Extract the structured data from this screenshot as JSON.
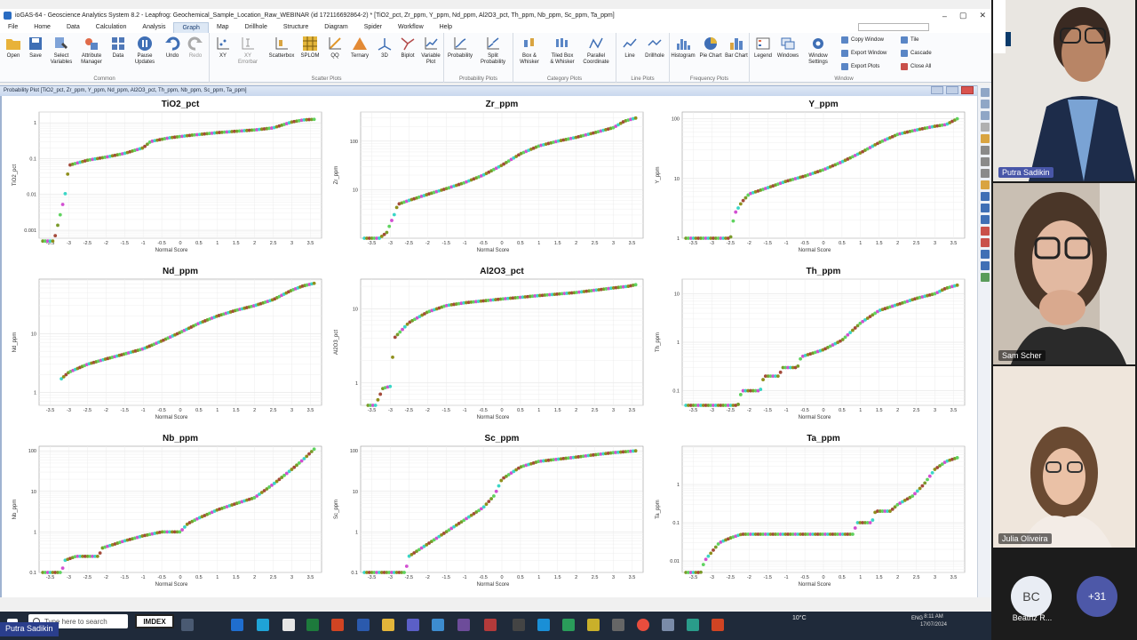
{
  "window": {
    "title": "ioGAS-64 - Geoscience Analytics System 8.2 - Leapfrog: Geochemical_Sample_Location_Raw_WEBINAR (id 172116692864-2) * [TiO2_pct, Zr_ppm, Y_ppm, Nd_ppm, Al2O3_pct, Th_ppm, Nb_ppm, Sc_ppm, Ta_ppm]",
    "controls": [
      "–",
      "▢",
      "✕"
    ]
  },
  "menu": {
    "items": [
      "File",
      "Home",
      "Data",
      "Calculation",
      "Analysis",
      "Graph",
      "Map",
      "Drillhole",
      "Structure",
      "Diagram",
      "Spider",
      "Workflow",
      "Help"
    ],
    "active_index": 5
  },
  "ribbon": {
    "groups": [
      {
        "label": "Common",
        "buttons": [
          "Open",
          "Save",
          "Select Variables",
          "Attribute Manager",
          "Data",
          "Pause Updates",
          "Undo",
          "Redo"
        ]
      },
      {
        "label": "Scatter Plots",
        "buttons": [
          "XY",
          "XY Errorbar",
          "Scatterbox",
          "SPLOM",
          "QQ",
          "Ternary",
          "3D",
          "Biplot",
          "Variable Plot"
        ]
      },
      {
        "label": "Probability Plots",
        "buttons": [
          "Probability",
          "Split Probability"
        ]
      },
      {
        "label": "Category Plots",
        "buttons": [
          "Box & Whisker",
          "Tiled Box & Whisker",
          "Parallel Coordinate"
        ]
      },
      {
        "label": "Line Plots",
        "buttons": [
          "Line",
          "Drillhole"
        ]
      },
      {
        "label": "Frequency Plots",
        "buttons": [
          "Histogram",
          "Pie Chart",
          "Bar Chart"
        ]
      },
      {
        "label": "Window",
        "buttons": [
          "Legend",
          "Windows",
          "Window Settings"
        ]
      }
    ],
    "window_small": [
      "Copy Window",
      "Export Window",
      "Export Plots",
      "Tile",
      "Cascade",
      "Close All"
    ]
  },
  "document": {
    "title": "Probability Plot [TiO2_pct, Zr_ppm, Y_ppm, Nd_ppm, Al2O3_pct, Th_ppm, Nb_ppm, Sc_ppm, Ta_ppm]"
  },
  "chart_data": [
    {
      "type": "scatter",
      "title": "TiO2_pct",
      "xlabel": "Normal Score",
      "ylabel": "TiO2_pct",
      "log_y": true,
      "xlim": [
        -3.8,
        3.8
      ],
      "ylim": [
        0.0006,
        2
      ],
      "yticks": [
        0.001,
        0.01,
        0.1,
        1
      ],
      "ytick_labels": [
        "0.001",
        "0.01",
        "0.1",
        "1"
      ],
      "curve": [
        [
          -3.7,
          0.0005
        ],
        [
          -3.4,
          0.0005
        ],
        [
          -3.1,
          0.01
        ],
        [
          -3.0,
          0.065
        ],
        [
          -2.5,
          0.09
        ],
        [
          -2.0,
          0.11
        ],
        [
          -1.5,
          0.14
        ],
        [
          -1.0,
          0.2
        ],
        [
          -0.8,
          0.3
        ],
        [
          -0.3,
          0.38
        ],
        [
          0.3,
          0.45
        ],
        [
          1.0,
          0.53
        ],
        [
          1.5,
          0.58
        ],
        [
          2.0,
          0.63
        ],
        [
          2.5,
          0.72
        ],
        [
          3.0,
          1.05
        ],
        [
          3.3,
          1.2
        ],
        [
          3.6,
          1.25
        ]
      ]
    },
    {
      "type": "scatter",
      "title": "Zr_ppm",
      "xlabel": "Normal Score",
      "ylabel": "Zr_ppm",
      "log_y": true,
      "xlim": [
        -3.8,
        3.8
      ],
      "ylim": [
        1,
        400
      ],
      "yticks": [
        10,
        100
      ],
      "ytick_labels": [
        "10",
        "100"
      ],
      "curve": [
        [
          -3.7,
          1
        ],
        [
          -3.3,
          1
        ],
        [
          -3.1,
          1.3
        ],
        [
          -3.0,
          2
        ],
        [
          -2.9,
          3
        ],
        [
          -2.8,
          5
        ],
        [
          -2.5,
          6
        ],
        [
          -2.0,
          8
        ],
        [
          -1.5,
          10.5
        ],
        [
          -1.0,
          14
        ],
        [
          -0.5,
          20
        ],
        [
          0.0,
          32
        ],
        [
          0.5,
          55
        ],
        [
          1.0,
          80
        ],
        [
          1.5,
          100
        ],
        [
          2.0,
          120
        ],
        [
          2.5,
          150
        ],
        [
          3.0,
          190
        ],
        [
          3.3,
          260
        ],
        [
          3.6,
          300
        ]
      ]
    },
    {
      "type": "scatter",
      "title": "Y_ppm",
      "xlabel": "Normal Score",
      "ylabel": "Y_ppm",
      "log_y": true,
      "xlim": [
        -3.8,
        3.8
      ],
      "ylim": [
        1,
        130
      ],
      "yticks": [
        1,
        10,
        100
      ],
      "ytick_labels": [
        "1",
        "10",
        "100"
      ],
      "curve": [
        [
          -3.7,
          1
        ],
        [
          -2.5,
          1
        ],
        [
          -2.4,
          2.5
        ],
        [
          -2.2,
          4
        ],
        [
          -2.0,
          5.5
        ],
        [
          -1.5,
          7
        ],
        [
          -1.0,
          9
        ],
        [
          -0.5,
          11
        ],
        [
          0.0,
          14
        ],
        [
          0.5,
          19
        ],
        [
          1.0,
          27
        ],
        [
          1.5,
          40
        ],
        [
          2.0,
          55
        ],
        [
          2.5,
          65
        ],
        [
          3.0,
          75
        ],
        [
          3.3,
          80
        ],
        [
          3.6,
          100
        ]
      ]
    },
    {
      "type": "scatter",
      "title": "Nd_ppm",
      "xlabel": "Normal Score",
      "ylabel": "Nd_ppm",
      "log_y": true,
      "xlim": [
        -3.8,
        3.8
      ],
      "ylim": [
        0.6,
        85
      ],
      "yticks": [
        1,
        10
      ],
      "ytick_labels": [
        "1",
        "10"
      ],
      "curve": [
        [
          -3.2,
          1.7
        ],
        [
          -3.0,
          2.2
        ],
        [
          -2.5,
          3
        ],
        [
          -2.0,
          3.7
        ],
        [
          -1.5,
          4.5
        ],
        [
          -1.0,
          5.5
        ],
        [
          -0.5,
          7.5
        ],
        [
          0.0,
          10.5
        ],
        [
          0.5,
          15
        ],
        [
          1.0,
          20
        ],
        [
          1.5,
          25
        ],
        [
          2.0,
          30
        ],
        [
          2.5,
          38
        ],
        [
          3.0,
          55
        ],
        [
          3.3,
          65
        ],
        [
          3.6,
          72
        ]
      ]
    },
    {
      "type": "scatter",
      "title": "Al2O3_pct",
      "xlabel": "Normal Score",
      "ylabel": "Al2O3_pct",
      "log_y": true,
      "xlim": [
        -3.8,
        3.8
      ],
      "ylim": [
        0.5,
        25
      ],
      "yticks": [
        1,
        10
      ],
      "ytick_labels": [
        "1",
        "10"
      ],
      "curve": [
        [
          -3.6,
          0.5
        ],
        [
          -3.4,
          0.5
        ],
        [
          -3.2,
          0.85
        ],
        [
          -3.0,
          0.9
        ],
        [
          -2.9,
          4
        ],
        [
          -2.5,
          6.5
        ],
        [
          -2.0,
          9
        ],
        [
          -1.5,
          11
        ],
        [
          -1.0,
          12
        ],
        [
          0.0,
          13.5
        ],
        [
          1.0,
          15
        ],
        [
          2.0,
          16.5
        ],
        [
          3.0,
          19
        ],
        [
          3.4,
          20
        ],
        [
          3.6,
          21
        ]
      ]
    },
    {
      "type": "scatter",
      "title": "Th_ppm",
      "xlabel": "Normal Score",
      "ylabel": "Th_ppm",
      "log_y": true,
      "xlim": [
        -3.8,
        3.8
      ],
      "ylim": [
        0.05,
        20
      ],
      "yticks": [
        0.1,
        1,
        10
      ],
      "ytick_labels": [
        "0.1",
        "1",
        "10"
      ],
      "curve": [
        [
          -3.7,
          0.05
        ],
        [
          -2.3,
          0.05
        ],
        [
          -2.2,
          0.1
        ],
        [
          -1.7,
          0.1
        ],
        [
          -1.6,
          0.2
        ],
        [
          -1.2,
          0.2
        ],
        [
          -1.1,
          0.3
        ],
        [
          -0.7,
          0.3
        ],
        [
          -0.6,
          0.5
        ],
        [
          0.0,
          0.7
        ],
        [
          0.5,
          1.1
        ],
        [
          1.0,
          2.5
        ],
        [
          1.5,
          4.5
        ],
        [
          2.0,
          6
        ],
        [
          2.5,
          8
        ],
        [
          3.0,
          10
        ],
        [
          3.3,
          13
        ],
        [
          3.6,
          15
        ]
      ]
    },
    {
      "type": "scatter",
      "title": "Nb_ppm",
      "xlabel": "Normal Score",
      "ylabel": "Nb_ppm",
      "log_y": true,
      "xlim": [
        -3.8,
        3.8
      ],
      "ylim": [
        0.1,
        130
      ],
      "yticks": [
        0.1,
        1,
        10,
        100
      ],
      "ytick_labels": [
        "0.1",
        "1",
        "10",
        "100"
      ],
      "curve": [
        [
          -3.7,
          0.1
        ],
        [
          -3.2,
          0.1
        ],
        [
          -3.1,
          0.2
        ],
        [
          -2.8,
          0.25
        ],
        [
          -2.2,
          0.25
        ],
        [
          -2.1,
          0.4
        ],
        [
          -1.5,
          0.6
        ],
        [
          -1.0,
          0.8
        ],
        [
          -0.5,
          1
        ],
        [
          0.0,
          1
        ],
        [
          0.2,
          1.6
        ],
        [
          0.5,
          2.2
        ],
        [
          1.0,
          3.5
        ],
        [
          1.5,
          5
        ],
        [
          2.0,
          7
        ],
        [
          2.5,
          15
        ],
        [
          3.0,
          35
        ],
        [
          3.3,
          60
        ],
        [
          3.6,
          110
        ]
      ]
    },
    {
      "type": "scatter",
      "title": "Sc_ppm",
      "xlabel": "Normal Score",
      "ylabel": "Sc_ppm",
      "log_y": true,
      "xlim": [
        -3.8,
        3.8
      ],
      "ylim": [
        0.1,
        130
      ],
      "yticks": [
        0.1,
        1,
        10,
        100
      ],
      "ytick_labels": [
        "0.1",
        "1",
        "10",
        "100"
      ],
      "curve": [
        [
          -3.7,
          0.1
        ],
        [
          -2.6,
          0.1
        ],
        [
          -2.5,
          0.25
        ],
        [
          -2.0,
          0.5
        ],
        [
          -1.5,
          1
        ],
        [
          -1.0,
          2
        ],
        [
          -0.5,
          4
        ],
        [
          -0.2,
          8
        ],
        [
          0.0,
          20
        ],
        [
          0.5,
          40
        ],
        [
          1.0,
          55
        ],
        [
          1.5,
          62
        ],
        [
          2.0,
          70
        ],
        [
          2.5,
          80
        ],
        [
          3.0,
          90
        ],
        [
          3.3,
          95
        ],
        [
          3.6,
          100
        ]
      ]
    },
    {
      "type": "scatter",
      "title": "Ta_ppm",
      "xlabel": "Normal Score",
      "ylabel": "Ta_ppm",
      "log_y": true,
      "xlim": [
        -3.8,
        3.8
      ],
      "ylim": [
        0.005,
        10
      ],
      "yticks": [
        0.01,
        0.1,
        1
      ],
      "ytick_labels": [
        "0.01",
        "0.1",
        "1"
      ],
      "curve": [
        [
          -3.7,
          0.005
        ],
        [
          -3.3,
          0.005
        ],
        [
          -3.2,
          0.01
        ],
        [
          -2.8,
          0.03
        ],
        [
          -2.5,
          0.04
        ],
        [
          -2.2,
          0.05
        ],
        [
          0.8,
          0.05
        ],
        [
          0.9,
          0.1
        ],
        [
          1.3,
          0.1
        ],
        [
          1.4,
          0.2
        ],
        [
          1.8,
          0.2
        ],
        [
          2.0,
          0.3
        ],
        [
          2.4,
          0.5
        ],
        [
          2.7,
          1
        ],
        [
          3.0,
          2.5
        ],
        [
          3.3,
          4
        ],
        [
          3.6,
          5
        ]
      ]
    }
  ],
  "chart_common": {
    "xticks": [
      -3.5,
      -3,
      -2.5,
      -2,
      -1.5,
      -1,
      -0.5,
      0,
      0.5,
      1,
      1.5,
      2,
      2.5,
      3,
      3.5
    ],
    "xtick_labels": [
      "-3.5",
      "-3",
      "-2.5",
      "-2",
      "-1.5",
      "-1",
      "-0.5",
      "0",
      "0.5",
      "1",
      "1.5",
      "2",
      "2.5",
      "3",
      "3.5"
    ],
    "point_colors": [
      "#7a9a2a",
      "#5fd35f",
      "#d24fd2",
      "#3ad6c6",
      "#8f8f1c",
      "#a44a3a"
    ],
    "grid": true
  },
  "taskbar": {
    "search_placeholder": "Type here to search",
    "imdex_label": "IMDEX",
    "temperature": "10°C",
    "language": "ENG",
    "time": "8:11 AM",
    "date": "17/07/2024"
  },
  "call": {
    "presenter_badge": "Putra Sadikin",
    "participants": [
      {
        "name": "Putra Sadikin",
        "highlight": true
      },
      {
        "name": "Sam Scher",
        "highlight": false
      },
      {
        "name": "Julia Oliveira",
        "highlight": false
      }
    ],
    "extra_initials": "BC",
    "extra_name": "Beatriz R...",
    "more_count": "+31"
  }
}
